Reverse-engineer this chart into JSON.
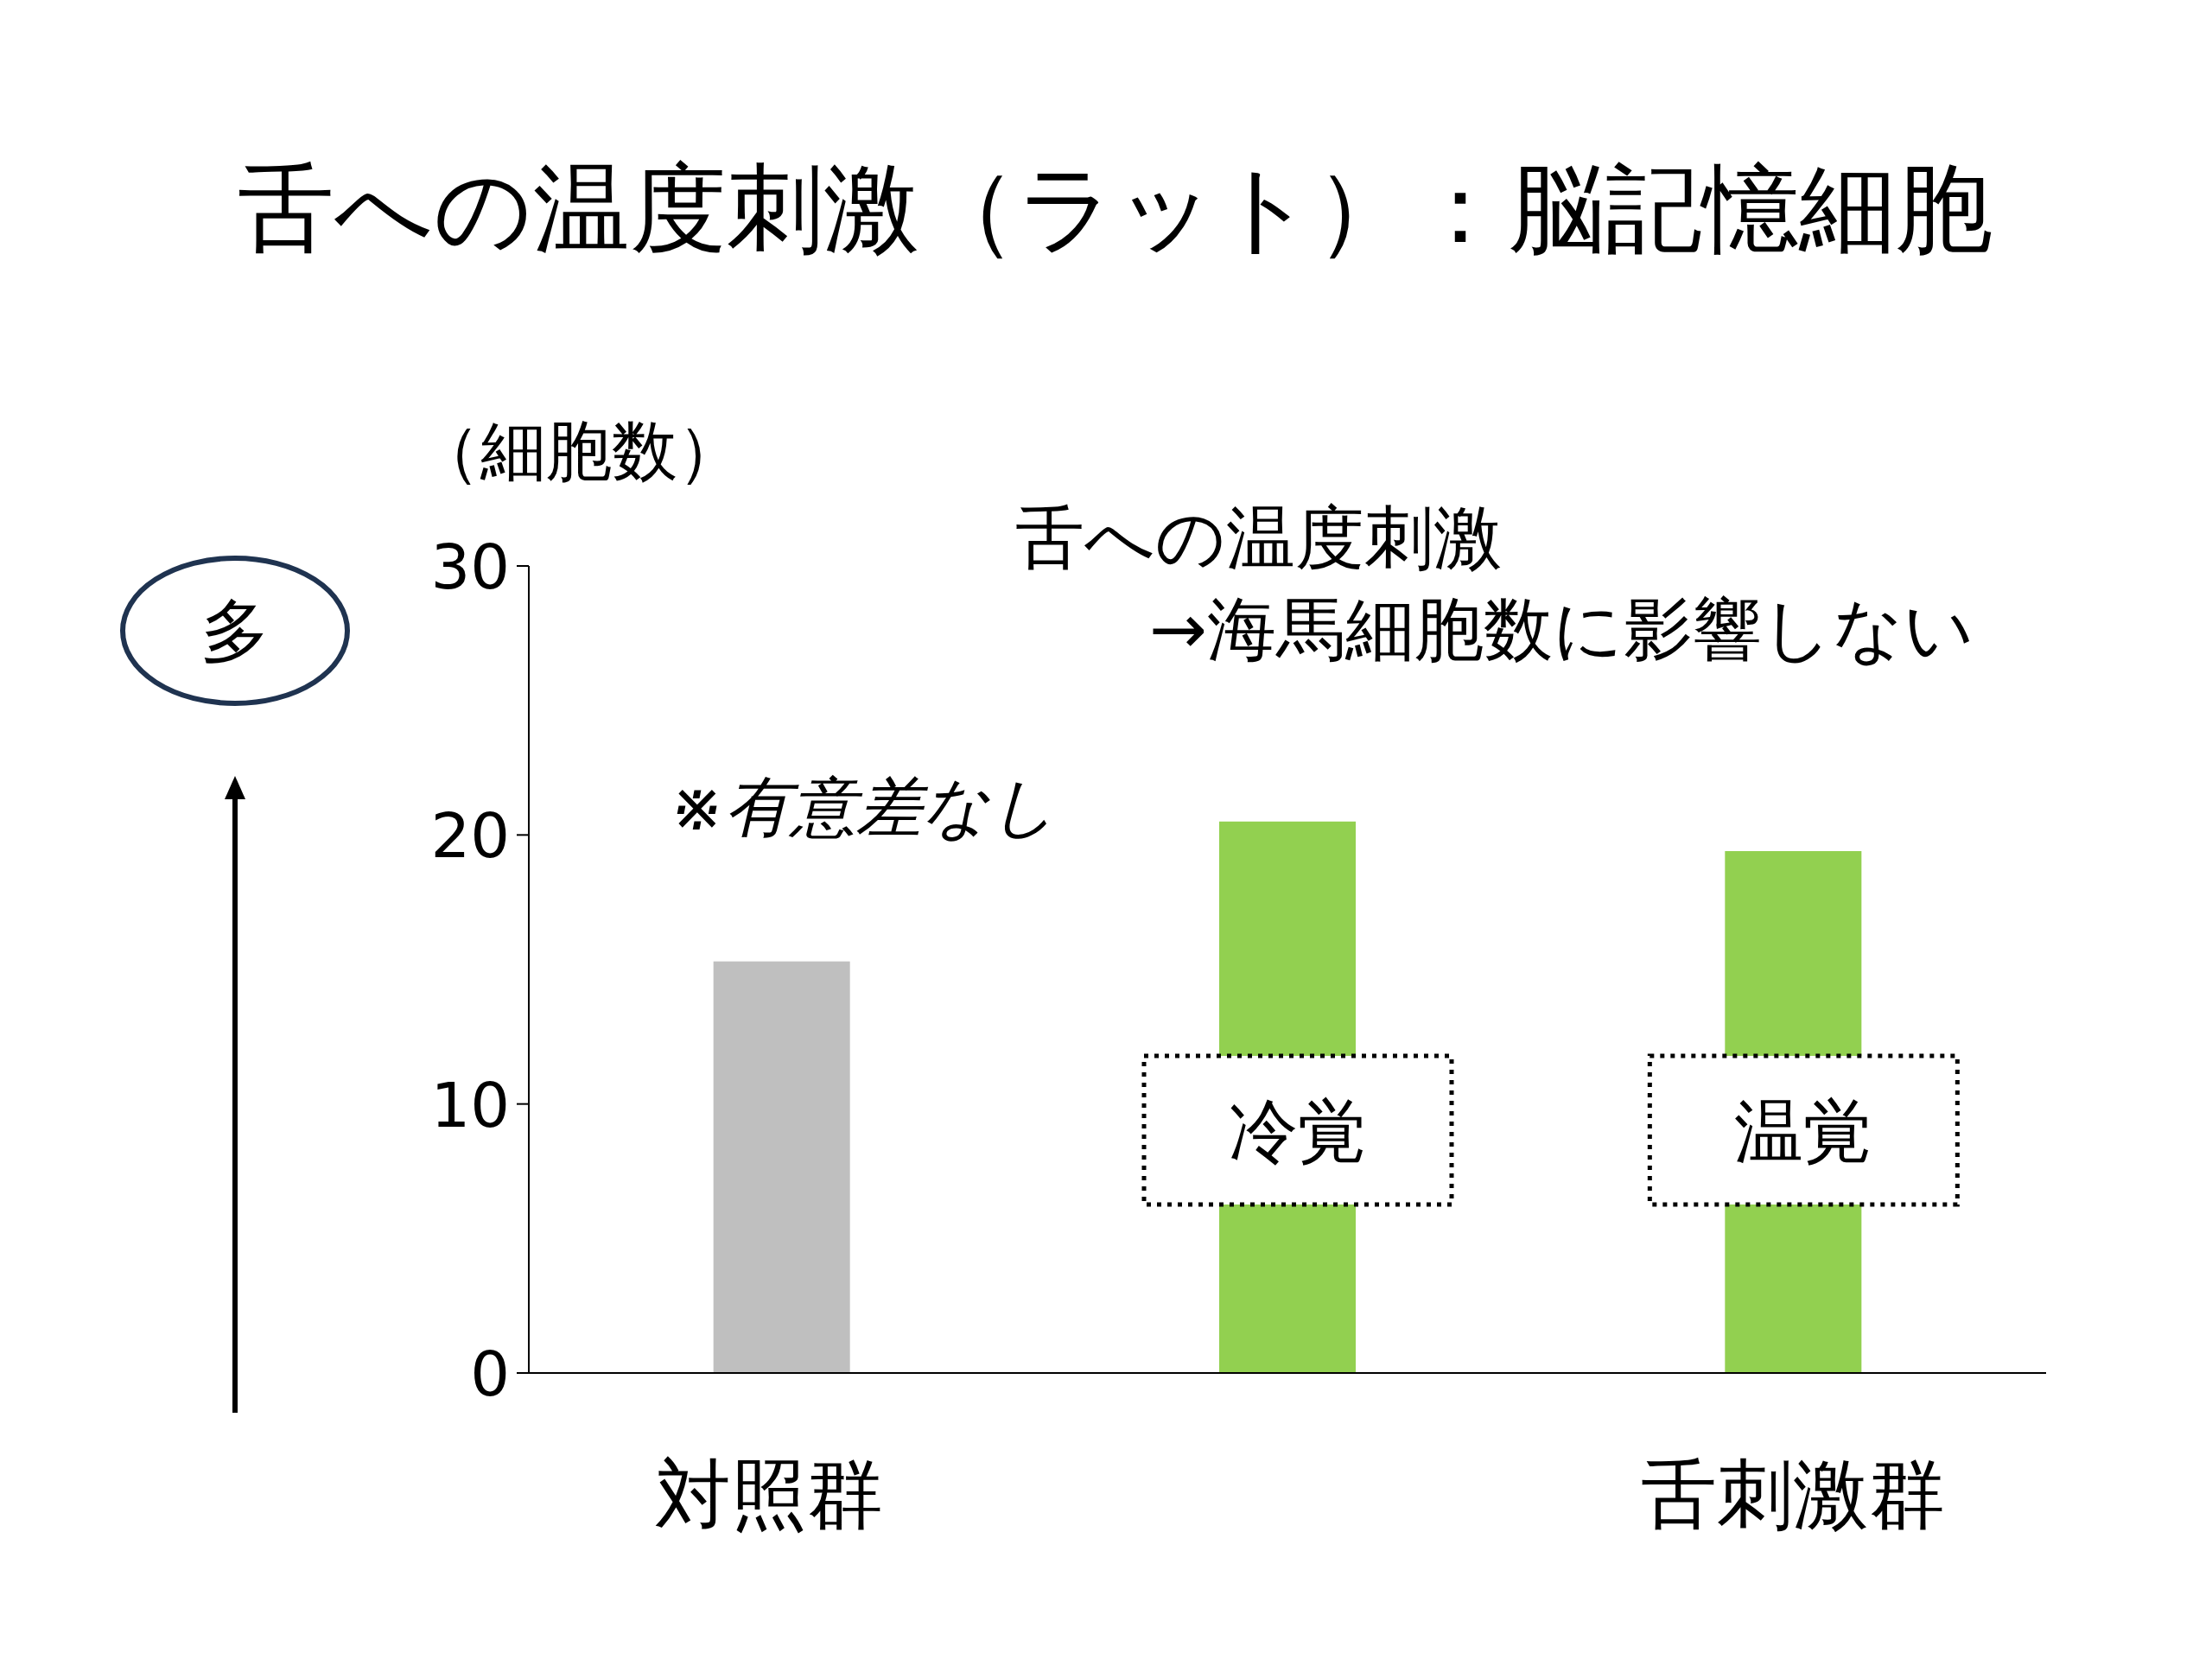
{
  "chart_data": {
    "type": "bar",
    "title": "舌への温度刺激（ラット）：脳記憶細胞",
    "ylabel": "（細胞数）",
    "categories": [
      "対照群",
      null,
      "舌刺激群"
    ],
    "values": [
      15.3,
      20.5,
      19.4
    ],
    "colors": [
      "#bfbfbf",
      "#92d050",
      "#92d050"
    ],
    "ylim": [
      0,
      30
    ],
    "yticks": [
      0,
      10,
      20,
      30
    ],
    "annotations": [
      "舌への温度刺激\n　→海馬細胞数に影響しない",
      "※有意差なし",
      "冷覚",
      "温覚",
      "多"
    ]
  }
}
